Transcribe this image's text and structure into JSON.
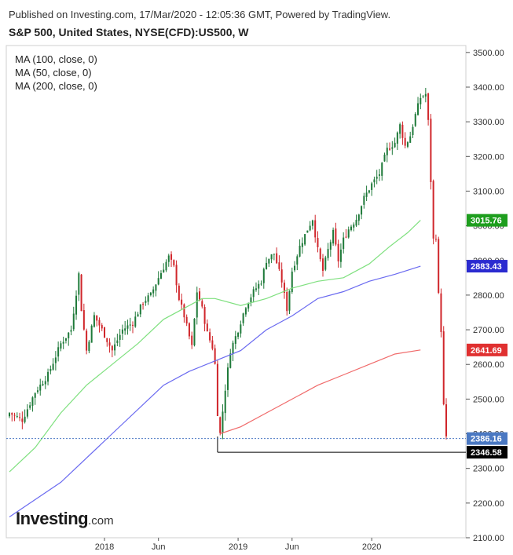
{
  "header": {
    "published": "Published on Investing.com, 17/Mar/2020 - 12:05:36 GMT, Powered by TradingView.",
    "title": "S&P 500, United States, NYSE(CFD):US500, W"
  },
  "legend": [
    {
      "label": "MA (100, close, 0)"
    },
    {
      "label": "MA (50, close, 0)"
    },
    {
      "label": "MA (200, close, 0)"
    }
  ],
  "logo": {
    "main": "Investing",
    "suffix": ".com"
  },
  "colors": {
    "up": "#1f7a3a",
    "down": "#d0262b",
    "ma50": "#7fe07f",
    "ma100": "#6a6af0",
    "ma200": "#f06a6a",
    "grid": "#e6e6e6",
    "axis": "#555555"
  },
  "chart_data": {
    "type": "candlestick",
    "ylim": [
      2100,
      3520
    ],
    "y_ticks": [
      "2100.00",
      "2200.00",
      "2300.00",
      "2400.00",
      "2500.00",
      "2600.00",
      "2700.00",
      "2800.00",
      "2900.00",
      "3000.00",
      "3100.00",
      "3200.00",
      "3300.00",
      "3400.00",
      "3500.00"
    ],
    "x_ticks": [
      {
        "label": "2018",
        "date": "2018-01"
      },
      {
        "label": "Jun",
        "date": "2018-06"
      },
      {
        "label": "2019",
        "date": "2019-01"
      },
      {
        "label": "Jun",
        "date": "2019-06"
      },
      {
        "label": "2020",
        "date": "2020-01"
      }
    ],
    "price_labels": [
      {
        "text": "3015.76",
        "value": 3015.76,
        "series": "MA (50, close, 0)",
        "color": "#1e9e1e"
      },
      {
        "text": "2883.43",
        "value": 2883.43,
        "series": "MA (100, close, 0)",
        "color": "#2b2bd0"
      },
      {
        "text": "2641.69",
        "value": 2641.69,
        "series": "MA (200, close, 0)",
        "color": "#e03030"
      },
      {
        "text": "2386.16",
        "value": 2386.16,
        "series": "last close",
        "color": "#4a78c2"
      },
      {
        "text": "2346.58",
        "value": 2346.58,
        "series": "support",
        "color": "#000000"
      }
    ],
    "support_level": {
      "value": 2346.58,
      "from_date": "2018-12-24"
    },
    "candles_count": 171,
    "ma50": [
      [
        0,
        2290
      ],
      [
        10,
        2360
      ],
      [
        20,
        2460
      ],
      [
        30,
        2540
      ],
      [
        40,
        2600
      ],
      [
        50,
        2660
      ],
      [
        60,
        2730
      ],
      [
        70,
        2770
      ],
      [
        75,
        2790
      ],
      [
        80,
        2790
      ],
      [
        90,
        2770
      ],
      [
        100,
        2790
      ],
      [
        110,
        2820
      ],
      [
        120,
        2840
      ],
      [
        130,
        2850
      ],
      [
        140,
        2890
      ],
      [
        148,
        2940
      ],
      [
        155,
        2980
      ],
      [
        160,
        3015.76
      ]
    ],
    "ma100": [
      [
        0,
        2160
      ],
      [
        20,
        2260
      ],
      [
        40,
        2400
      ],
      [
        60,
        2540
      ],
      [
        70,
        2580
      ],
      [
        80,
        2610
      ],
      [
        90,
        2640
      ],
      [
        100,
        2700
      ],
      [
        110,
        2740
      ],
      [
        120,
        2790
      ],
      [
        130,
        2810
      ],
      [
        140,
        2840
      ],
      [
        150,
        2860
      ],
      [
        160,
        2883.43
      ]
    ],
    "ma200": [
      [
        82,
        2400
      ],
      [
        90,
        2420
      ],
      [
        100,
        2460
      ],
      [
        110,
        2500
      ],
      [
        120,
        2540
      ],
      [
        130,
        2570
      ],
      [
        140,
        2600
      ],
      [
        150,
        2630
      ],
      [
        160,
        2641.69
      ]
    ]
  }
}
